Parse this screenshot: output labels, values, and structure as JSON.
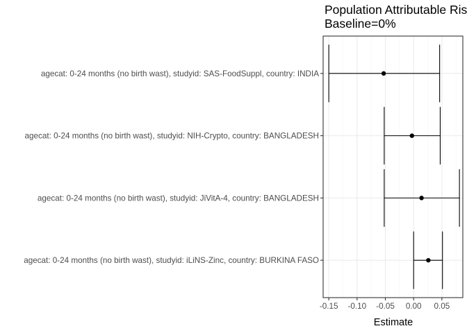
{
  "chart_data": {
    "type": "forest",
    "title": "Population Attributable Ris",
    "subtitle": "Baseline=0%",
    "xlabel": "Estimate",
    "ylabel": "",
    "xlim": [
      -0.16,
      0.087
    ],
    "x_ticks": [
      -0.15,
      -0.1,
      -0.05,
      0.0,
      0.05
    ],
    "x_tick_labels": [
      "-0.15",
      "-0.10",
      "-0.05",
      "0.00",
      "0.05"
    ],
    "grid": true,
    "rows": [
      {
        "label": "agecat: 0-24 months (no birth wast), studyid: SAS-FoodSuppl, country: INDIA",
        "estimate": -0.053,
        "lower": -0.15,
        "upper": 0.046
      },
      {
        "label": "agecat: 0-24 months (no birth wast), studyid: NIH-Crypto, country: BANGLADESH",
        "estimate": -0.003,
        "lower": -0.052,
        "upper": 0.047
      },
      {
        "label": "agecat: 0-24 months (no birth wast), studyid: JiVitA-4, country: BANGLADESH",
        "estimate": 0.014,
        "lower": -0.052,
        "upper": 0.081
      },
      {
        "label": "agecat: 0-24 months (no birth wast), studyid: iLiNS-Zinc, country: BURKINA FASO",
        "estimate": 0.026,
        "lower": 0.0,
        "upper": 0.051
      }
    ],
    "colors": {
      "line": "#000000",
      "grid_major": "#ebebeb",
      "grid_minor": "#f5f5f5",
      "axis_text": "#4d4d4d",
      "panel_border": "#333333"
    }
  }
}
